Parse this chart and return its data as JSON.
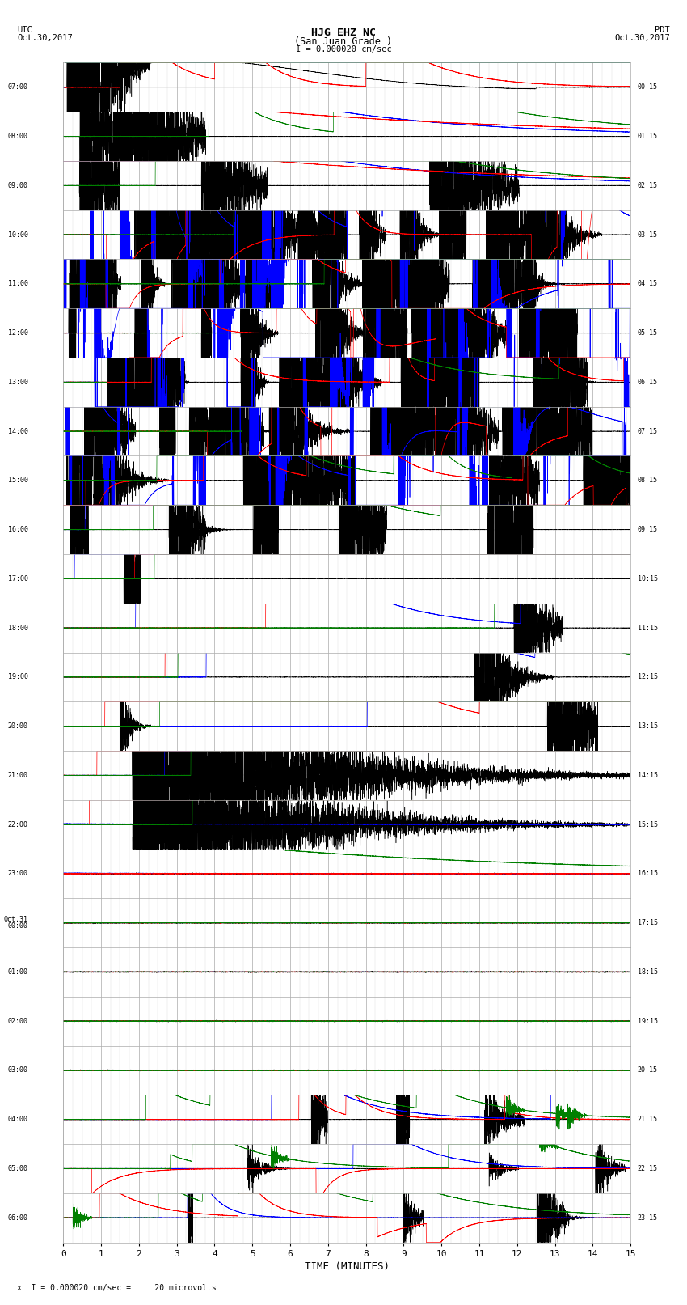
{
  "title_line1": "HJG EHZ NC",
  "title_line2": "(San Juan Grade )",
  "scale_label": "I = 0.000020 cm/sec",
  "utc_label": "UTC",
  "pdt_label": "PDT",
  "date_left": "Oct.30,2017",
  "date_right": "Oct.30,2017",
  "xlabel": "TIME (MINUTES)",
  "footer": "x  I = 0.000020 cm/sec =     20 microvolts",
  "left_times": [
    "07:00",
    "08:00",
    "09:00",
    "10:00",
    "11:00",
    "12:00",
    "13:00",
    "14:00",
    "15:00",
    "16:00",
    "17:00",
    "18:00",
    "19:00",
    "20:00",
    "21:00",
    "22:00",
    "23:00",
    "Oct.31\n00:00",
    "01:00",
    "02:00",
    "03:00",
    "04:00",
    "05:00",
    "06:00"
  ],
  "right_times": [
    "00:15",
    "01:15",
    "02:15",
    "03:15",
    "04:15",
    "05:15",
    "06:15",
    "07:15",
    "08:15",
    "09:15",
    "10:15",
    "11:15",
    "12:15",
    "13:15",
    "14:15",
    "15:15",
    "16:15",
    "17:15",
    "18:15",
    "19:15",
    "20:15",
    "21:15",
    "22:15",
    "23:15"
  ],
  "num_rows": 24,
  "xmin": 0,
  "xmax": 15,
  "bg_color": "#ffffff",
  "grid_color": "#aaaaaa",
  "figsize": [
    8.5,
    16.13
  ],
  "dpi": 100
}
